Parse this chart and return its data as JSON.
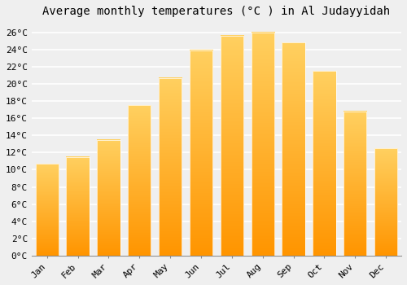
{
  "title": "Average monthly temperatures (°C ) in Al Judayyidah",
  "months": [
    "Jan",
    "Feb",
    "Mar",
    "Apr",
    "May",
    "Jun",
    "Jul",
    "Aug",
    "Sep",
    "Oct",
    "Nov",
    "Dec"
  ],
  "values": [
    10.7,
    11.5,
    13.5,
    17.5,
    20.7,
    23.9,
    25.6,
    26.0,
    24.8,
    21.5,
    16.8,
    12.5
  ],
  "bar_color_top": "#FFB300",
  "bar_color_bottom": "#FFA000",
  "bar_edge_color": "#FFFFFF",
  "ylim": [
    0,
    27
  ],
  "yticks": [
    0,
    2,
    4,
    6,
    8,
    10,
    12,
    14,
    16,
    18,
    20,
    22,
    24,
    26
  ],
  "background_color": "#EFEFEF",
  "grid_color": "#FFFFFF",
  "title_fontsize": 10,
  "tick_fontsize": 8,
  "font_family": "monospace"
}
